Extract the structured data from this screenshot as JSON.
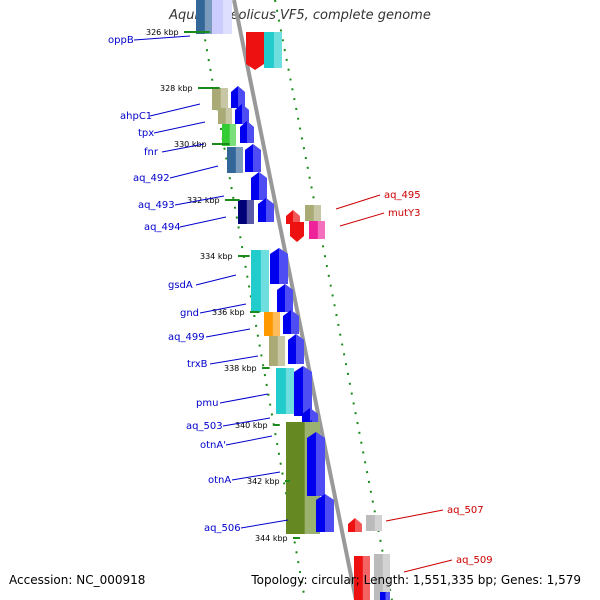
{
  "title": "Aquifex aeolicus VF5, complete genome",
  "accession": "Accession: NC_000918",
  "topology": "Topology: circular; Length: 1,551,335 bp; Genes: 1,579",
  "colors": {
    "backbone": "#999999",
    "tick": "#1a8a1a",
    "left_label": "#0000cc",
    "right_label": "#cc0000",
    "gene_blue": "#0000ee",
    "gene_cyan": "#22cccc",
    "gene_olive": "#aaaa77",
    "gene_green": "#33cc33",
    "gene_steel": "#336699",
    "gene_navy": "#000077",
    "gene_orange": "#ff9900",
    "gene_darkgreen": "#668822",
    "gene_red": "#ee1111",
    "gene_magenta": "#ee2299",
    "gene_gray": "#bbbbbb"
  },
  "ticks": [
    {
      "label": "326 kbp"
    },
    {
      "label": "328 kbp"
    },
    {
      "label": "330 kbp"
    },
    {
      "label": "332 kbp"
    },
    {
      "label": "334 kbp"
    },
    {
      "label": "336 kbp"
    },
    {
      "label": "338 kbp"
    },
    {
      "label": "340 kbp"
    },
    {
      "label": "342 kbp"
    },
    {
      "label": "344 kbp"
    }
  ],
  "left_genes": [
    {
      "label": "oppB"
    },
    {
      "label": "ahpC1"
    },
    {
      "label": "tpx"
    },
    {
      "label": "fnr"
    },
    {
      "label": "aq_492"
    },
    {
      "label": "aq_493"
    },
    {
      "label": "aq_494"
    },
    {
      "label": "gsdA"
    },
    {
      "label": "gnd"
    },
    {
      "label": "aq_499"
    },
    {
      "label": "trxB"
    },
    {
      "label": "pmu"
    },
    {
      "label": "aq_503"
    },
    {
      "label": "otnA'"
    },
    {
      "label": "otnA"
    },
    {
      "label": "aq_506"
    }
  ],
  "right_genes": [
    {
      "label": "aq_495"
    },
    {
      "label": "mutY3"
    },
    {
      "label": "aq_507"
    },
    {
      "label": "aq_509"
    }
  ]
}
